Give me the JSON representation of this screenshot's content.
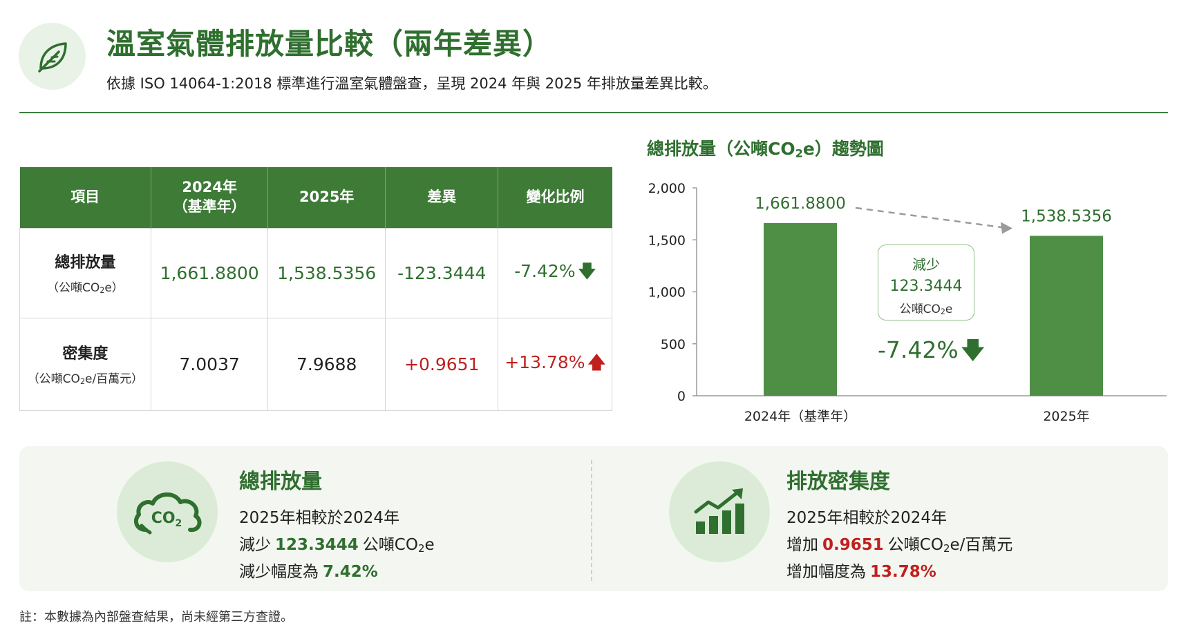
{
  "header": {
    "title": "溫室氣體排放量比較（兩年差異）",
    "subtitle": "依據 ISO 14064-1:2018 標準進行溫室氣體盤查，呈現 2024 年與 2025 年排放量差異比較。",
    "icon": "leaf-icon"
  },
  "table": {
    "headers": [
      "項目",
      "2024年",
      "（基準年）",
      "2025年",
      "差異",
      "變化比例"
    ],
    "rows": [
      {
        "name": "總排放量",
        "unit_prefix": "（公噸CO",
        "unit_sub": "2",
        "unit_suffix": "e）",
        "v2024": "1,661.8800",
        "v2025": "1,538.5356",
        "diff": "-123.3444",
        "pct": "-7.42%",
        "trend": "down"
      },
      {
        "name": "密集度",
        "unit_prefix": "（公噸CO",
        "unit_sub": "2",
        "unit_suffix": "e/百萬元）",
        "v2024": "7.0037",
        "v2025": "7.9688",
        "diff": "+0.9651",
        "pct": "+13.78%",
        "trend": "up"
      }
    ]
  },
  "chart_data": {
    "type": "bar",
    "title_prefix": "總排放量（公噸CO",
    "title_sub": "2",
    "title_suffix": "e）趨勢圖",
    "categories": [
      "2024年（基準年）",
      "2025年"
    ],
    "values": [
      1661.88,
      1538.5356
    ],
    "value_labels": [
      "1,661.8800",
      "1,538.5356"
    ],
    "yticks": [
      "0",
      "500",
      "1,000",
      "1,500",
      "2,000"
    ],
    "ytick_values": [
      0,
      500,
      1000,
      1500,
      2000
    ],
    "ylim": [
      0,
      2000
    ],
    "bar_color": "#4e8f45",
    "grid": false,
    "annotation": {
      "label": "減少",
      "value": "123.3444",
      "unit_prefix": "公噸CO",
      "unit_sub": "2",
      "unit_suffix": "e",
      "pct": "-7.42%"
    }
  },
  "summary": {
    "total": {
      "icon": "co2-cloud-icon",
      "icon_text": "CO",
      "icon_sub": "2",
      "title": "總排放量",
      "line1": "2025年相較於2024年",
      "line2_prefix": "減少",
      "line2_value": "123.3444",
      "line2_unit_prefix": "公噸CO",
      "line2_unit_sub": "2",
      "line2_unit_suffix": "e",
      "line3_prefix": "減少幅度為",
      "line3_value": "7.42%"
    },
    "intensity": {
      "icon": "growth-chart-icon",
      "title": "排放密集度",
      "line1": "2025年相較於2024年",
      "line2_prefix": "增加",
      "line2_value": "0.9651",
      "line2_unit_prefix": "公噸CO",
      "line2_unit_sub": "2",
      "line2_unit_suffix": "e/百萬元",
      "line3_prefix": "增加幅度為",
      "line3_value": "13.78%"
    }
  },
  "footnote": "註：本數據為內部盤查結果，尚未經第三方查證。",
  "colors": {
    "primary_green": "#2f6f2f",
    "header_green": "#3d7b36",
    "red": "#c0201e"
  }
}
